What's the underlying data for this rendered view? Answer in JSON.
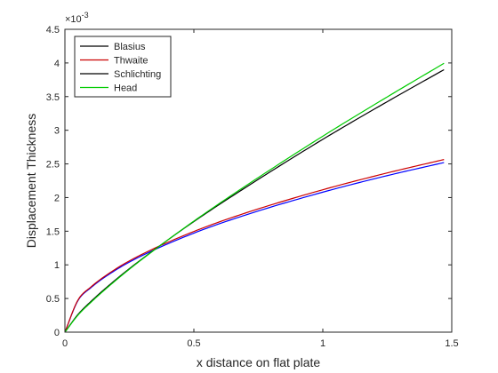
{
  "chart_data": {
    "type": "line",
    "title": "",
    "xlabel": "x distance on flat plate",
    "ylabel": "Displacement Thickness",
    "xlim": [
      0,
      1.5
    ],
    "ylim": [
      0,
      4.5
    ],
    "y_exponent_label": "×10",
    "y_exponent_power": "-3",
    "xticks": [
      0,
      0.5,
      1,
      1.5
    ],
    "xtick_labels": [
      "0",
      "0.5",
      "1",
      "1.5"
    ],
    "yticks": [
      0,
      0.5,
      1,
      1.5,
      2,
      2.5,
      3,
      3.5,
      4,
      4.5
    ],
    "ytick_labels": [
      "0",
      "0.5",
      "1",
      "1.5",
      "2",
      "2.5",
      "3",
      "3.5",
      "4",
      "4.5"
    ],
    "grid": false,
    "legend_position": "top-left",
    "legend": [
      {
        "name": "Blasius",
        "color": "#000000"
      },
      {
        "name": "Thwaite",
        "color": "#cc0000"
      },
      {
        "name": "Schlichting",
        "color": "#000000"
      },
      {
        "name": "Head",
        "color": "#00cc00"
      }
    ],
    "series": [
      {
        "color": "#0000ff",
        "x": [
          0,
          0.05,
          0.1,
          0.2,
          0.3,
          0.5,
          0.7,
          1.0,
          1.25,
          1.47
        ],
        "y": [
          0,
          0.465,
          0.658,
          0.93,
          1.139,
          1.471,
          1.74,
          2.08,
          2.326,
          2.52
        ]
      },
      {
        "color": "#cc0000",
        "x": [
          0,
          0.05,
          0.1,
          0.2,
          0.3,
          0.5,
          0.7,
          1.0,
          1.25,
          1.47
        ],
        "y": [
          0,
          0.473,
          0.669,
          0.946,
          1.159,
          1.496,
          1.77,
          2.116,
          2.366,
          2.565
        ]
      },
      {
        "color": "#000000",
        "x": [
          0,
          0.05,
          0.1,
          0.2,
          0.3,
          0.5,
          0.7,
          1.0,
          1.25,
          1.47
        ],
        "y": [
          0,
          0.26,
          0.453,
          0.789,
          1.091,
          1.643,
          2.148,
          2.865,
          3.425,
          3.9
        ]
      },
      {
        "color": "#00cc00",
        "x": [
          0,
          0.05,
          0.1,
          0.2,
          0.3,
          0.5,
          0.7,
          1.0,
          1.25,
          1.47
        ],
        "y": [
          0,
          0.25,
          0.44,
          0.778,
          1.085,
          1.65,
          2.171,
          2.912,
          3.496,
          3.995
        ]
      }
    ]
  }
}
